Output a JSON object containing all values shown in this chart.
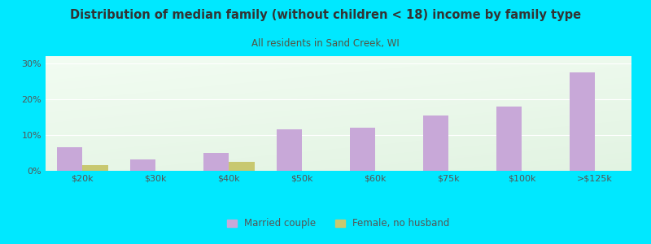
{
  "title": "Distribution of median family (without children < 18) income by family type",
  "subtitle": "All residents in Sand Creek, WI",
  "categories": [
    "$20k",
    "$30k",
    "$40k",
    "$50k",
    "$60k",
    "$75k",
    "$100k",
    ">$125k"
  ],
  "married_couple": [
    6.5,
    3.2,
    5.0,
    11.5,
    12.0,
    15.5,
    18.0,
    27.5
  ],
  "female_no_husband": [
    1.5,
    0.0,
    2.5,
    0.0,
    0.0,
    0.0,
    0.0,
    0.0
  ],
  "bar_color_married": "#c8a8d8",
  "bar_color_female": "#c8c870",
  "background_outer": "#00e8ff",
  "title_color": "#333333",
  "subtitle_color": "#555544",
  "tick_color": "#555555",
  "ylim": [
    0,
    32
  ],
  "yticks": [
    0,
    10,
    20,
    30
  ],
  "bar_width": 0.35,
  "legend_married": "Married couple",
  "legend_female": "Female, no husband"
}
